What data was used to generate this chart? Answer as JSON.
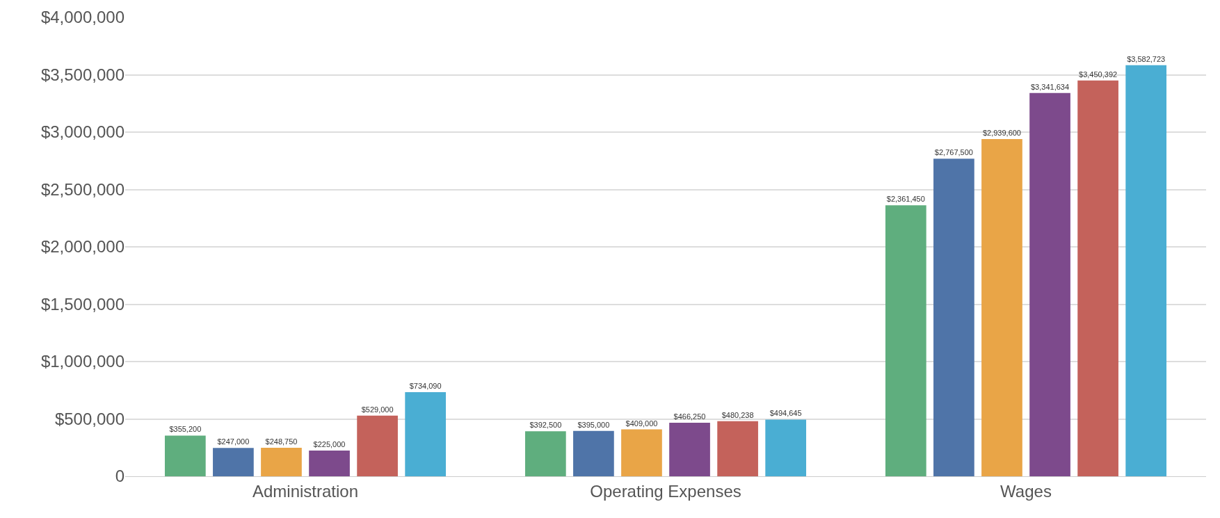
{
  "chart_data": {
    "type": "bar",
    "categories": [
      "Administration",
      "Operating Expenses",
      "Wages"
    ],
    "series": [
      {
        "color": "#5fae7e",
        "values": [
          355200,
          392500,
          2361450
        ],
        "value_labels": [
          "$355,200",
          "$392,500",
          "$2,361,450"
        ]
      },
      {
        "color": "#4f74a8",
        "values": [
          247000,
          395000,
          2767500
        ],
        "value_labels": [
          "$247,000",
          "$395,000",
          "$2,767,500"
        ]
      },
      {
        "color": "#e9a547",
        "values": [
          248750,
          409000,
          2939600
        ],
        "value_labels": [
          "$248,750",
          "$409,000",
          "$2,939,600"
        ]
      },
      {
        "color": "#7d4a8c",
        "values": [
          225000,
          466250,
          3341634
        ],
        "value_labels": [
          "$225,000",
          "$466,250",
          "$3,341,634"
        ]
      },
      {
        "color": "#c4625b",
        "values": [
          529000,
          480238,
          3450392
        ],
        "value_labels": [
          "$529,000",
          "$480,238",
          "$3,450,392"
        ]
      },
      {
        "color": "#4aaed3",
        "values": [
          734090,
          494645,
          3582723
        ],
        "value_labels": [
          "$734,090",
          "$494,645",
          "$3,582,723"
        ]
      }
    ],
    "ylim": [
      0,
      4000000
    ],
    "yticks": [
      0,
      {
        "value": 500000,
        "label": "$500,000"
      },
      {
        "value": 1000000,
        "label": "$1,000,000"
      },
      {
        "value": 1500000,
        "label": "$1,500,000"
      },
      {
        "value": 2000000,
        "label": "$2,000,000"
      },
      {
        "value": 2500000,
        "label": "$2,500,000"
      },
      {
        "value": 3000000,
        "label": "$3,000,000"
      },
      {
        "value": 3500000,
        "label": "$3,500,000"
      },
      {
        "value": 4000000,
        "label": "$4,000,000"
      }
    ],
    "grid": "y"
  }
}
